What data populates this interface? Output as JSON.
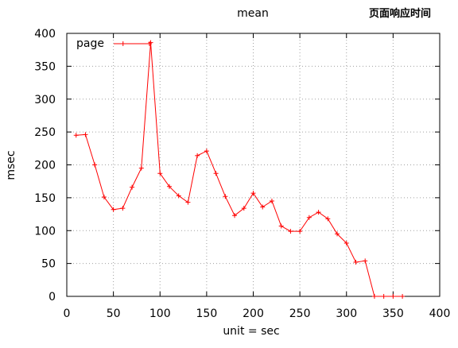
{
  "chart_data": {
    "type": "line",
    "title": "mean",
    "subtitle": "页面响应时间",
    "xlabel": "unit  = sec",
    "ylabel": "msec",
    "xlim": [
      0,
      400
    ],
    "ylim": [
      0,
      400
    ],
    "xticks": [
      0,
      50,
      100,
      150,
      200,
      250,
      300,
      350,
      400
    ],
    "yticks": [
      0,
      50,
      100,
      150,
      200,
      250,
      300,
      350,
      400
    ],
    "grid": true,
    "legend": "top-left",
    "series": [
      {
        "name": "page",
        "color": "#ff0000",
        "marker": "plus",
        "points": [
          [
            10,
            245
          ],
          [
            20,
            246
          ],
          [
            30,
            200
          ],
          [
            40,
            151
          ],
          [
            50,
            132
          ],
          [
            60,
            134
          ],
          [
            70,
            166
          ],
          [
            80,
            195
          ],
          [
            90,
            386
          ],
          [
            100,
            187
          ],
          [
            110,
            167
          ],
          [
            120,
            153
          ],
          [
            130,
            143
          ],
          [
            140,
            214
          ],
          [
            150,
            221
          ],
          [
            160,
            187
          ],
          [
            170,
            152
          ],
          [
            180,
            123
          ],
          [
            190,
            134
          ],
          [
            200,
            157
          ],
          [
            210,
            136
          ],
          [
            220,
            145
          ],
          [
            230,
            107
          ],
          [
            240,
            99
          ],
          [
            250,
            99
          ],
          [
            260,
            120
          ],
          [
            270,
            128
          ],
          [
            280,
            118
          ],
          [
            290,
            95
          ],
          [
            300,
            81
          ],
          [
            310,
            52
          ],
          [
            320,
            54
          ],
          [
            330,
            0
          ],
          [
            340,
            0
          ],
          [
            350,
            0
          ],
          [
            360,
            0
          ]
        ]
      }
    ]
  }
}
